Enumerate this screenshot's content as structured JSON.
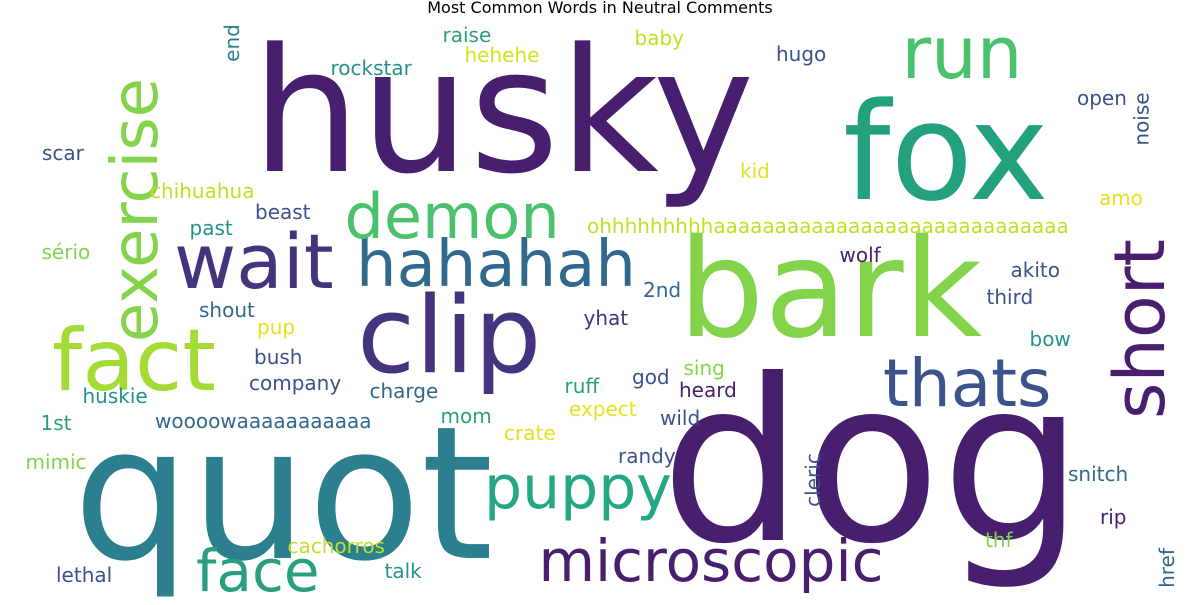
{
  "title": "Most Common Words in Neutral Comments",
  "colors": {
    "indigo": "#471f6e",
    "purple": "#46337e",
    "slate": "#3b528b",
    "blue": "#31688e",
    "teal": "#2b7f8e",
    "cyan": "#21918c",
    "seagreen": "#24a884",
    "green": "#4ac16d",
    "lime": "#84d44b",
    "yellowgreen": "#addc30",
    "yellow": "#e5e11e"
  },
  "words": [
    {
      "text": "husky",
      "color": "#471f6e"
    },
    {
      "text": "dog",
      "color": "#471f6e"
    },
    {
      "text": "fox",
      "color": "#23a17e"
    },
    {
      "text": "quot",
      "color": "#2b7f8e"
    },
    {
      "text": "bark",
      "color": "#84d44b"
    },
    {
      "text": "clip",
      "color": "#46337e"
    },
    {
      "text": "wait",
      "color": "#46337e"
    },
    {
      "text": "hahahah",
      "color": "#31688e"
    },
    {
      "text": "fact",
      "color": "#a5db36"
    },
    {
      "text": "run",
      "color": "#4ac16d"
    },
    {
      "text": "exercise",
      "color": "#84d44b"
    },
    {
      "text": "demon",
      "color": "#4ac16d"
    },
    {
      "text": "thats",
      "color": "#3b528b"
    },
    {
      "text": "short",
      "color": "#471f6e"
    },
    {
      "text": "puppy",
      "color": "#24a884"
    },
    {
      "text": "microscopic",
      "color": "#471f6e"
    },
    {
      "text": "face",
      "color": "#2a9f80"
    },
    {
      "text": "ohhhhhhhhhaaaaaaaaaaaaaaaaaaaaaaaaaaaaa",
      "color": "#c2df23"
    },
    {
      "text": "woooowaaaaaaaaaaa",
      "color": "#31688e"
    },
    {
      "text": "rockstar",
      "color": "#26928d"
    },
    {
      "text": "raise",
      "color": "#2a9f80"
    },
    {
      "text": "hehehe",
      "color": "#d4e21a"
    },
    {
      "text": "baby",
      "color": "#c2df23"
    },
    {
      "text": "end",
      "color": "#2b7f8e"
    },
    {
      "text": "hugo",
      "color": "#3b528b"
    },
    {
      "text": "open",
      "color": "#3b528b"
    },
    {
      "text": "noise",
      "color": "#3b528b"
    },
    {
      "text": "scar",
      "color": "#3b528b"
    },
    {
      "text": "kid",
      "color": "#e5e11e"
    },
    {
      "text": "chihuahua",
      "color": "#c2df23"
    },
    {
      "text": "amo",
      "color": "#e5e11e"
    },
    {
      "text": "beast",
      "color": "#3b528b"
    },
    {
      "text": "past",
      "color": "#26928d"
    },
    {
      "text": "sério",
      "color": "#84d44b"
    },
    {
      "text": "wolf",
      "color": "#471f6e"
    },
    {
      "text": "akito",
      "color": "#3b528b"
    },
    {
      "text": "2nd",
      "color": "#31688e"
    },
    {
      "text": "third",
      "color": "#3b528b"
    },
    {
      "text": "shout",
      "color": "#31688e"
    },
    {
      "text": "pup",
      "color": "#e5e11e"
    },
    {
      "text": "yhat",
      "color": "#46337e"
    },
    {
      "text": "bow",
      "color": "#26928d"
    },
    {
      "text": "bush",
      "color": "#3b528b"
    },
    {
      "text": "sing",
      "color": "#84d44b"
    },
    {
      "text": "company",
      "color": "#3b528b"
    },
    {
      "text": "charge",
      "color": "#31688e"
    },
    {
      "text": "ruff",
      "color": "#2a9f80"
    },
    {
      "text": "god",
      "color": "#3b528b"
    },
    {
      "text": "heard",
      "color": "#471f6e"
    },
    {
      "text": "huskie",
      "color": "#26928d"
    },
    {
      "text": "expect",
      "color": "#e5e11e"
    },
    {
      "text": "wild",
      "color": "#3b528b"
    },
    {
      "text": "1st",
      "color": "#2a9f80"
    },
    {
      "text": "mom",
      "color": "#2a9f80"
    },
    {
      "text": "crate",
      "color": "#e5e11e"
    },
    {
      "text": "mimic",
      "color": "#84d44b"
    },
    {
      "text": "randy",
      "color": "#3b528b"
    },
    {
      "text": "cleric",
      "color": "#3b528b"
    },
    {
      "text": "snitch",
      "color": "#31688e"
    },
    {
      "text": "rip",
      "color": "#471f6e"
    },
    {
      "text": "cachorros",
      "color": "#c2df23"
    },
    {
      "text": "thf",
      "color": "#84d44b"
    },
    {
      "text": "href",
      "color": "#31688e"
    },
    {
      "text": "talk",
      "color": "#26928d"
    },
    {
      "text": "lethal",
      "color": "#3b528b"
    }
  ]
}
